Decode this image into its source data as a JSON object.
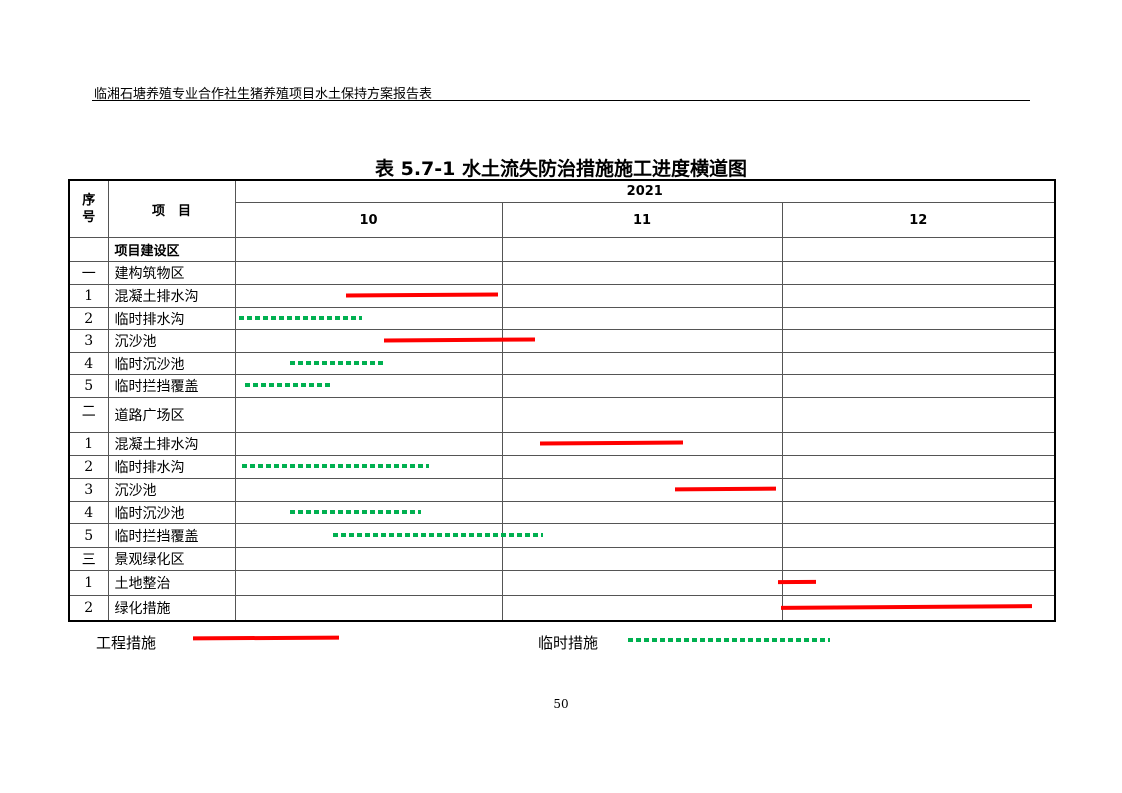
{
  "header": "临湘石塘养殖专业合作社生猪养殖项目水土保持方案报告表",
  "title": "表 5.7-1 水土流失防治措施施工进度横道图",
  "columns": {
    "seq": "序\n号",
    "item": "项　目",
    "year": "2021",
    "months": [
      "10",
      "11",
      "12"
    ]
  },
  "rows": [
    {
      "seq": "",
      "item": "项目建设区",
      "bold": true,
      "bars": []
    },
    {
      "seq": "一",
      "item": "建构筑物区",
      "bars": []
    },
    {
      "seq": "1",
      "item": "混凝土排水沟",
      "bars": [
        {
          "type": "engineering",
          "start": 10.42,
          "end": 10.99
        }
      ]
    },
    {
      "seq": "2",
      "item": "临时排水沟",
      "bars": [
        {
          "type": "temporary",
          "start": 10.02,
          "end": 10.48
        }
      ]
    },
    {
      "seq": "3",
      "item": "沉沙池",
      "bars": [
        {
          "type": "engineering",
          "start": 10.56,
          "end": 11.12
        }
      ]
    },
    {
      "seq": "4",
      "item": "临时沉沙池",
      "bars": [
        {
          "type": "temporary",
          "start": 10.21,
          "end": 10.57
        }
      ]
    },
    {
      "seq": "5",
      "item": "临时拦挡覆盖",
      "bars": [
        {
          "type": "temporary",
          "start": 10.04,
          "end": 10.36
        }
      ]
    },
    {
      "seq": "二",
      "item": "道路广场区",
      "tall": true,
      "bars": []
    },
    {
      "seq": "1",
      "item": "混凝土排水沟",
      "bars": [
        {
          "type": "engineering",
          "start": 11.14,
          "end": 11.65
        }
      ]
    },
    {
      "seq": "2",
      "item": "临时排水沟",
      "bars": [
        {
          "type": "temporary",
          "start": 10.03,
          "end": 10.73
        }
      ]
    },
    {
      "seq": "3",
      "item": "沉沙池",
      "bars": [
        {
          "type": "engineering",
          "start": 11.62,
          "end": 11.98
        }
      ]
    },
    {
      "seq": "4",
      "item": "临时沉沙池",
      "bars": [
        {
          "type": "temporary",
          "start": 10.21,
          "end": 10.7
        }
      ]
    },
    {
      "seq": "5",
      "item": "临时拦挡覆盖",
      "bars": [
        {
          "type": "temporary",
          "start": 10.37,
          "end": 11.15
        }
      ]
    },
    {
      "seq": "三",
      "item": "景观绿化区",
      "bars": []
    },
    {
      "seq": "1",
      "item": "土地整治",
      "bars": [
        {
          "type": "engineering",
          "start": 11.99,
          "end": 12.13
        }
      ]
    },
    {
      "seq": "2",
      "item": "绿化措施",
      "bars": [
        {
          "type": "engineering",
          "start": 12.0,
          "end": 12.92
        }
      ]
    }
  ],
  "legend": {
    "engineering": "工程措施",
    "temporary": "临时措施"
  },
  "colors": {
    "engineering": "#ff0000",
    "temporary": "#00b050"
  },
  "page_number": "50"
}
